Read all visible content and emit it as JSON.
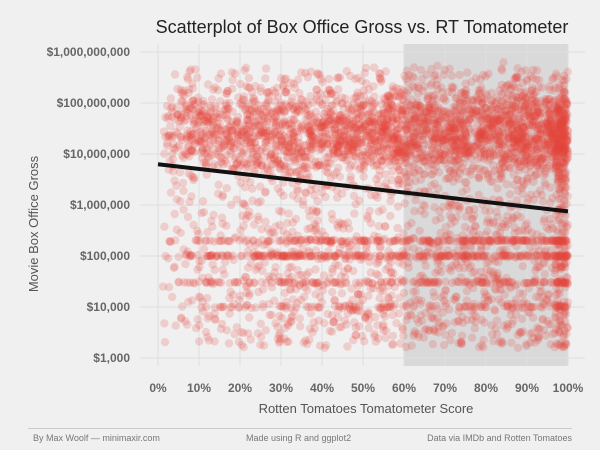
{
  "chart_data": {
    "type": "scatter",
    "title": "Scatterplot of Box Office Gross vs. RT Tomatometer",
    "xlabel": "Rotten Tomatoes Tomatometer Score",
    "ylabel": "Movie Box Office Gross",
    "xlim": [
      0,
      100
    ],
    "ylim": [
      1000,
      1000000000
    ],
    "y_scale": "log10",
    "x_ticks": [
      "0%",
      "10%",
      "20%",
      "30%",
      "40%",
      "50%",
      "60%",
      "70%",
      "80%",
      "90%",
      "100%"
    ],
    "y_ticks": [
      "$1,000",
      "$10,000",
      "$100,000",
      "$1,000,000",
      "$10,000,000",
      "$100,000,000",
      "$1,000,000,000"
    ],
    "shaded_region": {
      "x_from": 60,
      "x_to": 100
    },
    "trend_line": {
      "x": [
        0,
        100
      ],
      "y": [
        6300000,
        750000
      ]
    },
    "point_color": "#e8483c",
    "trend_color": "#111111",
    "shade_color": "#d9d9d9",
    "grid": true
  },
  "footer": {
    "left": "By Max Woolf — minimaxir.com",
    "center": "Made using R and ggplot2",
    "right": "Data via IMDb and Rotten Tomatoes"
  }
}
